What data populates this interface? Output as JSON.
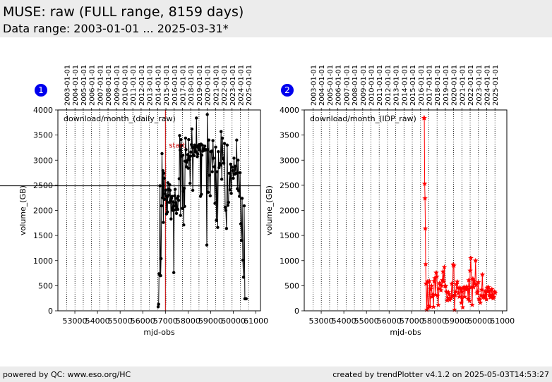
{
  "page": {
    "title": "MUSE: raw (FULL range, 8159 days)",
    "subtitle": "Data range: 2003-01-01 ... 2025-03-31*",
    "footer_left": "powered by QC: www.eso.org/HC",
    "footer_right": "created by trendPlotter v4.1.2 on 2025-05-03T14:53:27"
  },
  "chart_data": [
    {
      "type": "line",
      "badge": "1",
      "label": "download/month_(daily_raw)",
      "xlabel": "mjd-obs",
      "ylabel": "volume_(GB)",
      "xlim": [
        52250,
        61200
      ],
      "ylim": [
        0,
        4000
      ],
      "xticks": [
        53000,
        54000,
        55000,
        56000,
        57000,
        58000,
        59000,
        60000,
        61000
      ],
      "yticks": [
        0,
        500,
        1000,
        1500,
        2000,
        2500,
        3000,
        3500,
        4000
      ],
      "top_ticks": [
        "2003-01-01",
        "2004-01-01",
        "2005-01-01",
        "2006-01-01",
        "2007-01-01",
        "2008-01-01",
        "2009-01-01",
        "2010-01-01",
        "2011-01-01",
        "2012-01-01",
        "2013-01-01",
        "2014-01-01",
        "2015-01-01",
        "2016-01-01",
        "2017-01-01",
        "2018-01-01",
        "2019-01-01",
        "2020-01-01",
        "2021-01-01",
        "2022-01-01",
        "2023-01-01",
        "2024-01-01",
        "2025-01-01"
      ],
      "top_ticks_mjd": [
        52640,
        53005,
        53371,
        53736,
        54101,
        54466,
        54832,
        55197,
        55562,
        55927,
        56293,
        56658,
        57023,
        57388,
        57754,
        58119,
        58484,
        58849,
        59215,
        59580,
        59945,
        60310,
        60676
      ],
      "hline": 2490,
      "vline_red": 57000,
      "annotation": "start",
      "color": "#000000",
      "marker": "dot",
      "x": [
        56680,
        56700,
        56720,
        56740,
        56760,
        56790,
        56810,
        56830,
        56850,
        56870,
        56890,
        56910,
        56930,
        56950,
        56970,
        56990,
        57010,
        57030,
        57050,
        57070,
        57090,
        57110,
        57130,
        57150,
        57170,
        57190,
        57210,
        57230,
        57250,
        57270,
        57290,
        57310,
        57330,
        57350,
        57370,
        57390,
        57410,
        57430,
        57450,
        57470,
        57490,
        57510,
        57530,
        57550,
        57570,
        57590,
        57610,
        57630,
        57650,
        57670,
        57690,
        57710,
        57730,
        57750,
        57770,
        57790,
        57810,
        57830,
        57850,
        57870,
        57890,
        57910,
        57930,
        57950,
        57970,
        57990,
        58010,
        58030,
        58050,
        58070,
        58090,
        58110,
        58130,
        58150,
        58170,
        58190,
        58210,
        58230,
        58250,
        58270,
        58290,
        58310,
        58330,
        58350,
        58370,
        58390,
        58410,
        58430,
        58450,
        58470,
        58490,
        58510,
        58530,
        58550,
        58570,
        58590,
        58610,
        58630,
        58650,
        58670,
        58690,
        58710,
        58740,
        58780,
        58800,
        58830,
        58850,
        58870,
        58890,
        58920,
        58950,
        58980,
        59010,
        59040,
        59070,
        59100,
        59130,
        59160,
        59190,
        59220,
        59250,
        59280,
        59310,
        59340,
        59370,
        59400,
        59430,
        59460,
        59490,
        59520,
        59550,
        59580,
        59610,
        59640,
        59670,
        59700,
        59730,
        59760,
        59790,
        59820,
        59850,
        59880,
        59910,
        59940,
        59970,
        60000,
        60030,
        60060,
        60090,
        60120,
        60150,
        60180,
        60210,
        60240,
        60270,
        60300,
        60330,
        60360,
        60390,
        60420,
        60450,
        60480,
        60510,
        60540,
        60570
      ],
      "y": [
        80,
        130,
        740,
        720,
        2490,
        700,
        1040,
        2090,
        3130,
        2250,
        2790,
        1760,
        2740,
        2640,
        2220,
        2330,
        2400,
        2290,
        1930,
        2270,
        1970,
        2550,
        2420,
        2300,
        2160,
        2510,
        2400,
        2190,
        1830,
        2240,
        2280,
        2050,
        2000,
        2170,
        760,
        2090,
        2290,
        2420,
        2010,
        2150,
        1940,
        2240,
        2030,
        2020,
        2280,
        2200,
        2630,
        3490,
        3200,
        1900,
        3410,
        3290,
        3080,
        2040,
        3100,
        2380,
        1710,
        2440,
        2080,
        2980,
        3440,
        3210,
        2870,
        2960,
        2990,
        3110,
        2840,
        3410,
        3060,
        3010,
        2540,
        3080,
        3160,
        3310,
        3620,
        3260,
        2400,
        3100,
        3250,
        3090,
        3300,
        3190,
        3280,
        3160,
        3840,
        3270,
        3070,
        3120,
        3290,
        3250,
        3310,
        3200,
        3300,
        2280,
        3320,
        2320,
        3100,
        3300,
        3180,
        3220,
        3190,
        3230,
        3280,
        3200,
        3210,
        1310,
        3910,
        3210,
        2360,
        3400,
        2700,
        2290,
        3170,
        3180,
        2770,
        3390,
        3040,
        2870,
        2140,
        3260,
        1800,
        2770,
        1660,
        3170,
        2850,
        2930,
        2900,
        3570,
        2620,
        3440,
        3030,
        2940,
        3330,
        2060,
        2000,
        1640,
        3300,
        2100,
        2160,
        2740,
        2410,
        2920,
        2340,
        2860,
        2790,
        2640,
        3040,
        2720,
        2880,
        2740,
        3400,
        2430,
        3000,
        2390,
        2280,
        2750,
        1730,
        1400,
        2240,
        1010,
        670,
        2090,
        240,
        240,
        240
      ]
    },
    {
      "type": "line",
      "badge": "2",
      "label": "download/month_(IDP_raw)",
      "xlabel": "mjd-obs",
      "ylabel": "volume_(GB)",
      "xlim": [
        52250,
        61200
      ],
      "ylim": [
        0,
        4000
      ],
      "xticks": [
        53000,
        54000,
        55000,
        56000,
        57000,
        58000,
        59000,
        60000,
        61000
      ],
      "yticks": [
        0,
        500,
        1000,
        1500,
        2000,
        2500,
        3000,
        3500,
        4000
      ],
      "top_ticks": [
        "2003-01-01",
        "2004-01-01",
        "2005-01-01",
        "2006-01-01",
        "2007-01-01",
        "2008-01-01",
        "2009-01-01",
        "2010-01-01",
        "2011-01-01",
        "2012-01-01",
        "2013-01-01",
        "2014-01-01",
        "2015-01-01",
        "2016-01-01",
        "2017-01-01",
        "2018-01-01",
        "2019-01-01",
        "2020-01-01",
        "2021-01-01",
        "2022-01-01",
        "2023-01-01",
        "2024-01-01",
        "2025-01-01"
      ],
      "top_ticks_mjd": [
        52640,
        53005,
        53371,
        53736,
        54101,
        54466,
        54832,
        55197,
        55562,
        55927,
        56293,
        56658,
        57023,
        57388,
        57754,
        58119,
        58484,
        58849,
        59215,
        59580,
        59945,
        60310,
        60676
      ],
      "color": "#ff0000",
      "marker": "star",
      "x": [
        57540,
        57555,
        57570,
        57585,
        57600,
        57615,
        57630,
        57660,
        57690,
        57720,
        57750,
        57780,
        57810,
        57840,
        57870,
        57900,
        57930,
        57960,
        57990,
        58020,
        58050,
        58080,
        58110,
        58140,
        58170,
        58200,
        58230,
        58260,
        58290,
        58320,
        58350,
        58380,
        58410,
        58440,
        58470,
        58500,
        58530,
        58560,
        58590,
        58620,
        58650,
        58680,
        58710,
        58740,
        58770,
        58800,
        58830,
        58860,
        58890,
        58920,
        58950,
        58980,
        59010,
        59040,
        59070,
        59100,
        59130,
        59160,
        59190,
        59220,
        59250,
        59280,
        59310,
        59340,
        59370,
        59400,
        59430,
        59460,
        59490,
        59520,
        59550,
        59580,
        59610,
        59640,
        59670,
        59700,
        59730,
        59760,
        59790,
        59820,
        59850,
        59880,
        59910,
        59940,
        59970,
        60000,
        60030,
        60060,
        60090,
        60120,
        60150,
        60180,
        60210,
        60240,
        60270,
        60300,
        60330,
        60360,
        60390,
        60420,
        60450,
        60480,
        60510,
        60540,
        60570,
        60600,
        60630,
        60660,
        60690
      ],
      "y": [
        3840,
        3840,
        2530,
        2240,
        1640,
        930,
        540,
        20,
        580,
        60,
        100,
        590,
        80,
        430,
        500,
        280,
        320,
        80,
        590,
        650,
        320,
        760,
        680,
        300,
        120,
        440,
        550,
        520,
        410,
        500,
        610,
        780,
        580,
        870,
        500,
        490,
        380,
        210,
        260,
        370,
        330,
        220,
        250,
        250,
        540,
        300,
        920,
        900,
        20,
        310,
        380,
        530,
        580,
        460,
        350,
        280,
        460,
        430,
        160,
        380,
        70,
        450,
        470,
        280,
        430,
        430,
        480,
        440,
        240,
        610,
        200,
        800,
        1050,
        470,
        120,
        640,
        470,
        590,
        530,
        1000,
        520,
        350,
        380,
        570,
        240,
        220,
        160,
        310,
        420,
        720,
        270,
        300,
        260,
        390,
        310,
        230,
        460,
        380,
        470,
        310,
        400,
        270,
        300,
        430,
        320,
        250,
        280,
        380,
        360
      ]
    }
  ]
}
